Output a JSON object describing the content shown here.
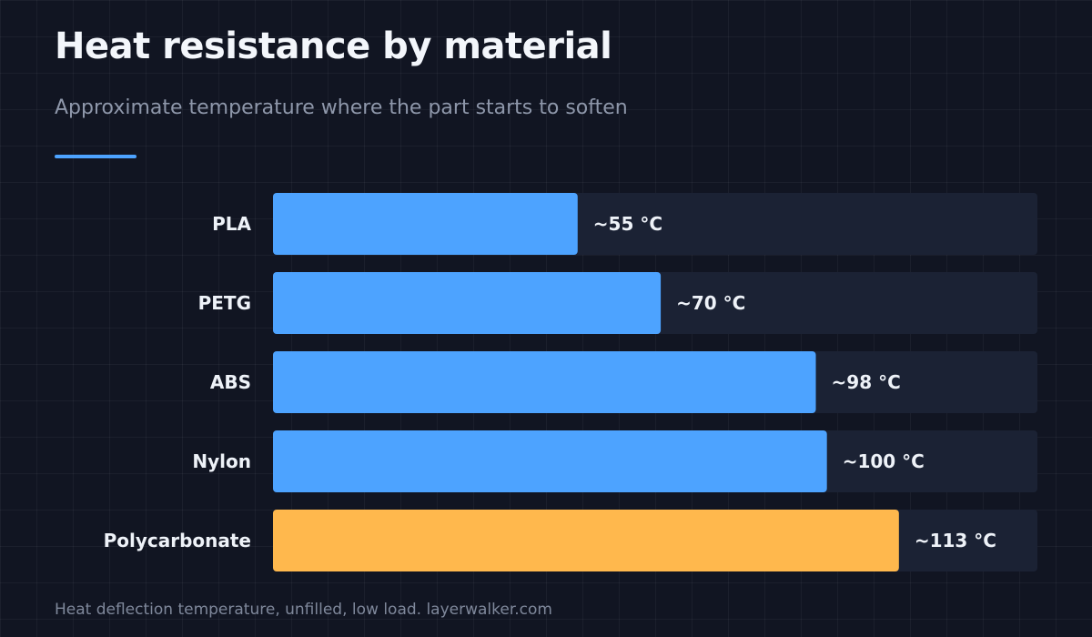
{
  "header": {
    "title": "Heat resistance by material",
    "subtitle": "Approximate temperature where the part starts to soften"
  },
  "footer": {
    "source": "Heat deflection temperature, unfilled, low load. layerwalker.com"
  },
  "colors": {
    "accent": "#4da3ff",
    "bar": "#4da3ff",
    "highlight": "#ffb84d",
    "track": "#1b2234",
    "label": "#eef2f8",
    "background": "#111522"
  },
  "chart_data": {
    "type": "bar",
    "orientation": "horizontal",
    "categories": [
      "PLA",
      "PETG",
      "ABS",
      "Nylon",
      "Polycarbonate"
    ],
    "values": [
      55,
      70,
      98,
      100,
      113
    ],
    "value_labels": [
      "~55 °C",
      "~70 °C",
      "~98 °C",
      "~100 °C",
      "~113 °C"
    ],
    "highlighted_category": "Polycarbonate",
    "xlim": [
      0,
      138
    ],
    "title": "Heat resistance by material",
    "subtitle": "Approximate temperature where the part starts to soften",
    "xlabel": "",
    "ylabel": "",
    "legend": "none",
    "grid": false
  }
}
